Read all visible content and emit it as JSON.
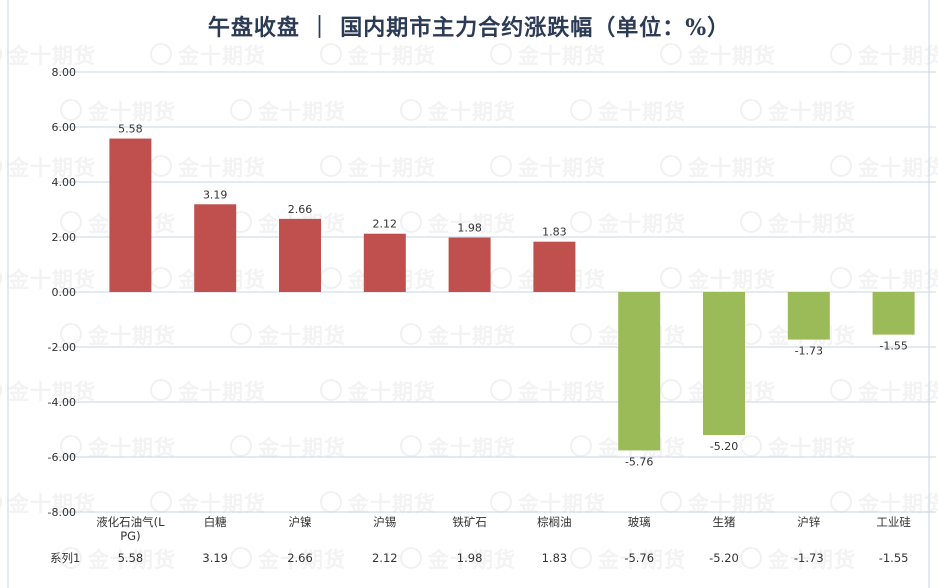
{
  "title": "午盘收盘 ｜ 国内期市主力合约涨跌幅（单位：%）",
  "watermark": "金十期货",
  "colors": {
    "positive": "#c0504d",
    "negative": "#9bbb59",
    "grid": "#c9d6e3",
    "text": "#333333",
    "title": "#2b3a55"
  },
  "chart_data": {
    "type": "bar",
    "title": "午盘收盘 ｜ 国内期市主力合约涨跌幅（单位：%）",
    "categories": [
      "液化石油气(LPG)",
      "白糖",
      "沪镍",
      "沪锡",
      "铁矿石",
      "棕榈油",
      "玻璃",
      "生猪",
      "沪锌",
      "工业硅"
    ],
    "category_lines": [
      [
        "液化石油气(L",
        "PG)"
      ],
      [
        "白糖"
      ],
      [
        "沪镍"
      ],
      [
        "沪锡"
      ],
      [
        "铁矿石"
      ],
      [
        "棕榈油"
      ],
      [
        "玻璃"
      ],
      [
        "生猪"
      ],
      [
        "沪锌"
      ],
      [
        "工业硅"
      ]
    ],
    "series": [
      {
        "name": "系列1",
        "values": [
          5.58,
          3.19,
          2.66,
          2.12,
          1.98,
          1.83,
          -5.76,
          -5.2,
          -1.73,
          -1.55
        ]
      }
    ],
    "value_labels": [
      "5.58",
      "3.19",
      "2.66",
      "2.12",
      "1.98",
      "1.83",
      "-5.76",
      "-5.20",
      "-1.73",
      "-1.55"
    ],
    "yticks": [
      8,
      6,
      4,
      2,
      0,
      -2,
      -4,
      -6,
      -8
    ],
    "ytick_labels": [
      "8.00",
      "6.00",
      "4.00",
      "2.00",
      "0.00",
      "-2.00",
      "-4.00",
      "-6.00",
      "-8.00"
    ],
    "ylim": [
      -8,
      8
    ],
    "grid": true,
    "legend": "data-table-bottom"
  }
}
